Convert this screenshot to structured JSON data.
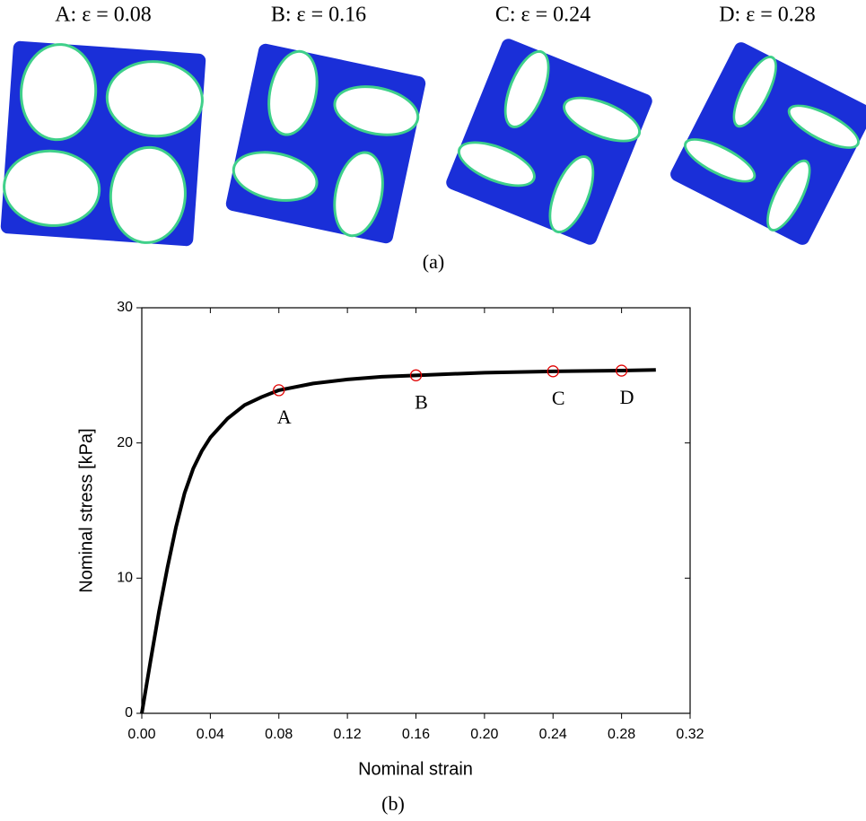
{
  "panel_a": {
    "labels": [
      "A: ε = 0.08",
      "B: ε = 0.16",
      "C: ε = 0.24",
      "D: ε = 0.28"
    ],
    "caption": "(a)"
  },
  "chart_data": {
    "type": "line",
    "caption": "(b)",
    "xlabel": "Nominal strain",
    "ylabel": "Nominal stress [kPa]",
    "x": [
      0,
      0.005,
      0.01,
      0.015,
      0.02,
      0.025,
      0.03,
      0.035,
      0.04,
      0.05,
      0.06,
      0.07,
      0.08,
      0.1,
      0.12,
      0.14,
      0.16,
      0.2,
      0.24,
      0.28,
      0.3
    ],
    "values": [
      0,
      3.8,
      7.5,
      10.8,
      13.8,
      16.3,
      18.1,
      19.4,
      20.4,
      21.8,
      22.8,
      23.4,
      23.9,
      24.4,
      24.7,
      24.9,
      25.0,
      25.2,
      25.3,
      25.35,
      25.4
    ],
    "color": "#000000",
    "points": {
      "x": [
        0.08,
        0.16,
        0.24,
        0.28
      ],
      "values": [
        23.9,
        25.0,
        25.3,
        25.35
      ],
      "labels": [
        "A",
        "B",
        "C",
        "D"
      ],
      "color": "#e00000"
    },
    "xlim": [
      0,
      0.32
    ],
    "ylim": [
      0,
      30
    ],
    "xticks": [
      {
        "value": 0,
        "label": "0.00"
      },
      0.04,
      0.08,
      0.12,
      0.16,
      {
        "value": 0.2,
        "label": "0.20"
      },
      0.24,
      0.28,
      0.32
    ],
    "yticks": [
      0,
      10,
      20,
      30
    ],
    "grid": false
  }
}
